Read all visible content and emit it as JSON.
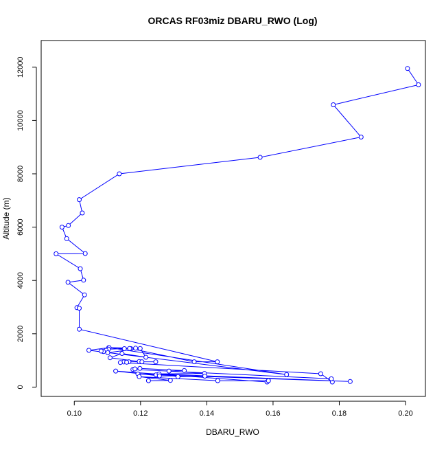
{
  "chart_data": {
    "type": "line",
    "title": "ORCAS RF03miz DBARU_RWO (Log)",
    "xlabel": "DBARU_RWO",
    "ylabel": "Altitude (m)",
    "xlim": [
      0.09,
      0.206
    ],
    "ylim": [
      -350,
      13000
    ],
    "x_ticks": [
      0.1,
      0.12,
      0.14,
      0.16,
      0.18,
      0.2
    ],
    "x_tick_labels": [
      "0.10",
      "0.12",
      "0.14",
      "0.16",
      "0.18",
      "0.20"
    ],
    "y_ticks": [
      0,
      2000,
      4000,
      6000,
      8000,
      10000,
      12000
    ],
    "y_tick_labels": [
      "0",
      "2000",
      "4000",
      "6000",
      "8000",
      "10000",
      "12000"
    ],
    "grid": false,
    "series": [
      {
        "color": "#0000ff",
        "marker": "open-circle",
        "points": [
          [
            0.2006,
            11950
          ],
          [
            0.2039,
            11340
          ],
          [
            0.1782,
            10590
          ],
          [
            0.1866,
            9380
          ],
          [
            0.1561,
            8620
          ],
          [
            0.1136,
            8000
          ],
          [
            0.1015,
            7030
          ],
          [
            0.1024,
            6530
          ],
          [
            0.0982,
            6060
          ],
          [
            0.0963,
            6000
          ],
          [
            0.0977,
            5570
          ],
          [
            0.1033,
            5010
          ],
          [
            0.0945,
            5000
          ],
          [
            0.1018,
            4440
          ],
          [
            0.1028,
            4010
          ],
          [
            0.0981,
            3930
          ],
          [
            0.1031,
            3460
          ],
          [
            0.1008,
            2980
          ],
          [
            0.1015,
            2960
          ],
          [
            0.1015,
            2170
          ],
          [
            0.1432,
            950
          ],
          [
            0.1362,
            950
          ],
          [
            0.1171,
            1440
          ],
          [
            0.1104,
            1480
          ],
          [
            0.1044,
            1380
          ],
          [
            0.1641,
            470
          ],
          [
            0.1105,
            1480
          ],
          [
            0.1185,
            1460
          ],
          [
            0.1167,
            1450
          ],
          [
            0.1151,
            1440
          ],
          [
            0.1103,
            1420
          ],
          [
            0.1096,
            1380
          ],
          [
            0.1088,
            1330
          ],
          [
            0.1081,
            1350
          ],
          [
            0.1101,
            1290
          ],
          [
            0.1199,
            1450
          ],
          [
            0.1216,
            1120
          ],
          [
            0.1144,
            1260
          ],
          [
            0.1108,
            1100
          ],
          [
            0.1196,
            960
          ],
          [
            0.1204,
            950
          ],
          [
            0.1246,
            950
          ],
          [
            0.1165,
            950
          ],
          [
            0.1149,
            940
          ],
          [
            0.1158,
            930
          ],
          [
            0.1139,
            920
          ],
          [
            0.1744,
            500
          ],
          [
            0.1779,
            190
          ],
          [
            0.1776,
            310
          ],
          [
            0.1177,
            660
          ],
          [
            0.1183,
            680
          ],
          [
            0.1198,
            700
          ],
          [
            0.1332,
            620
          ],
          [
            0.1286,
            600
          ],
          [
            0.1393,
            510
          ],
          [
            0.1192,
            490
          ],
          [
            0.1247,
            460
          ],
          [
            0.1833,
            210
          ],
          [
            0.1256,
            490
          ],
          [
            0.1313,
            390
          ],
          [
            0.1394,
            410
          ],
          [
            0.1257,
            420
          ],
          [
            0.1125,
            600
          ],
          [
            0.1582,
            190
          ],
          [
            0.1586,
            240
          ],
          [
            0.1433,
            240
          ],
          [
            0.1196,
            390
          ],
          [
            0.129,
            250
          ],
          [
            0.1224,
            240
          ]
        ]
      }
    ]
  }
}
